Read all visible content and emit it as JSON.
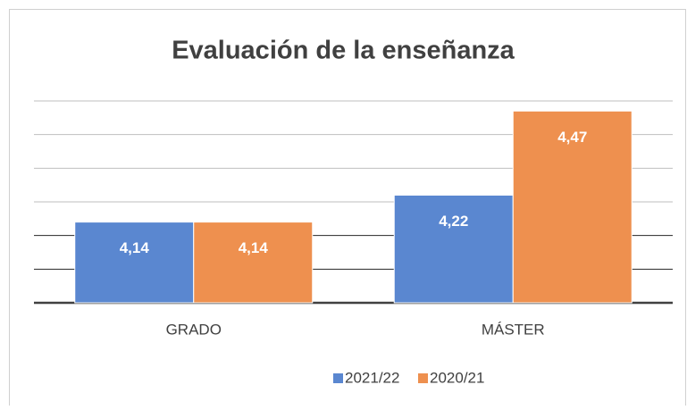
{
  "chart_data": {
    "type": "bar",
    "title": "Evaluación de la enseñanza",
    "categories": [
      "GRADO",
      "MÁSTER"
    ],
    "series": [
      {
        "name": "2021/22",
        "color": "#5a87d0",
        "values": [
          4.14,
          4.22
        ],
        "value_labels": [
          "4,14",
          "4,22"
        ]
      },
      {
        "name": "2020/21",
        "color": "#ee904f",
        "values": [
          4.14,
          4.47
        ],
        "value_labels": [
          "4,14",
          "4,47"
        ]
      }
    ],
    "ylim": [
      3.9,
      4.5
    ],
    "yticks": [
      3.9,
      4.0,
      4.1,
      4.2,
      4.3,
      4.4,
      4.5
    ],
    "grid": true,
    "legend": "bottom"
  }
}
